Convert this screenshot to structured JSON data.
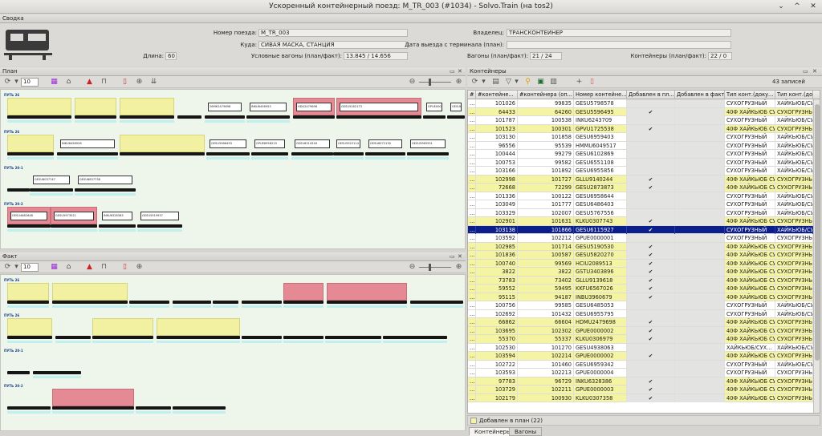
{
  "window": {
    "title": "Ускоренный контейнерный поезд: M_TR_003 (#1034) - Solvo.Train (на tos2)",
    "controls": [
      "⌄",
      "^",
      "✕"
    ]
  },
  "summary": {
    "header": "Сводка",
    "train_number_label": "Номер поезда:",
    "train_number": "M_TR_003",
    "destination_label": "Куда:",
    "destination": "СИВАЯ МАСКА, СТАНЦИЯ",
    "length_label": "Длина:",
    "length": "60",
    "cond_wagons_label": "Условные вагоны (план/факт):",
    "cond_wagons": "13.845 / 14.656",
    "owner_label": "Владелец:",
    "owner": "ТРАНСКОНТЕЙНЕР",
    "departure_label": "Дата выезда с терминала (план):",
    "departure": "",
    "wagons_label": "Вагоны (план/факт):",
    "wagons": "21 / 24",
    "containers_label": "Контейнеры (план/факт):",
    "containers": "22 / 0"
  },
  "plan": {
    "header": "План",
    "spin_value": "10",
    "tracks": [
      {
        "label": "ПУТЬ 26",
        "boxes": [
          "26МК2479698",
          "INKU6456953",
          "HDU2479698",
          "GESU5282173",
          "GPUE0000001",
          "GESU6952181"
        ]
      },
      {
        "label": "ПУТЬ 26",
        "boxes": [
          "INKU6456926",
          "GESU5986493",
          "GPUE6958219",
          "GESU6314318",
          "GESU5922114",
          "GESU6572130",
          "GESU5965551"
        ]
      },
      {
        "label": "ПУТЬ 20-1",
        "boxes": [
          "GESU6037747",
          "GESU6837738"
        ]
      },
      {
        "label": "ПУТЬ 20-2",
        "boxes": [
          "GESU4682648",
          "GESU5973521",
          "INKU6328383",
          "GESU5919937"
        ]
      }
    ]
  },
  "fact": {
    "header": "Факт",
    "spin_value": "10",
    "tracks": [
      {
        "label": "ПУТЬ 26"
      },
      {
        "label": "ПУТЬ 26"
      },
      {
        "label": "ПУТЬ 20-1"
      },
      {
        "label": "ПУТЬ 20-2"
      }
    ]
  },
  "containers": {
    "header": "Контейнеры",
    "record_count": "43 записей",
    "columns": [
      "#",
      "#контейне...",
      "#контейнера (оп...",
      "Номер контейне...",
      "Добавлен в пл...",
      "Добавлен в факт",
      "Тип конт.(доку...",
      "Тип конт.(доку..."
    ],
    "rows": [
      {
        "style": "W",
        "n1": "101026",
        "n2": "99835",
        "num": "GESU5798578",
        "plan": "",
        "type1": "СУХОГРУЗНЫЙ",
        "type2": "ХАЙКЬЮБ/СУ..."
      },
      {
        "style": "Y",
        "n1": "64433",
        "n2": "64260",
        "num": "GESU5596495",
        "plan": "✔",
        "type1": "40Ф ХАЙКЬЮБ СУ...",
        "type2": "СУХОГРУЗНЫ"
      },
      {
        "style": "W",
        "n1": "101787",
        "n2": "100538",
        "num": "INKU6243709",
        "plan": "",
        "type1": "СУХОГРУЗНЫЙ",
        "type2": "ХАЙКЬЮБ/СУ..."
      },
      {
        "style": "Y",
        "n1": "101523",
        "n2": "100301",
        "num": "GPVU1725538",
        "plan": "✔",
        "type1": "40Ф ХАЙКЬЮБ СУ...",
        "type2": "СУХОГРУЗНЫ"
      },
      {
        "style": "W",
        "n1": "103130",
        "n2": "101858",
        "num": "GESU6959403",
        "plan": "",
        "type1": "СУХОГРУЗНЫЙ",
        "type2": "ХАЙКЬЮБ/СУ..."
      },
      {
        "style": "W",
        "n1": "96556",
        "n2": "95539",
        "num": "HMMU6049517",
        "plan": "",
        "type1": "СУХОГРУЗНЫЙ",
        "type2": "ХАЙКЬЮБ/СУ..."
      },
      {
        "style": "W",
        "n1": "100444",
        "n2": "99279",
        "num": "GESU6102869",
        "plan": "",
        "type1": "СУХОГРУЗНЫЙ",
        "type2": "ХАЙКЬЮБ/СУ..."
      },
      {
        "style": "W",
        "n1": "100753",
        "n2": "99582",
        "num": "GESU6551108",
        "plan": "",
        "type1": "СУХОГРУЗНЫЙ",
        "type2": "ХАЙКЬЮБ/СУ..."
      },
      {
        "style": "W",
        "n1": "103166",
        "n2": "101892",
        "num": "GESU6955856",
        "plan": "",
        "type1": "СУХОГРУЗНЫЙ",
        "type2": "ХАЙКЬЮБ/СУ..."
      },
      {
        "style": "Y",
        "n1": "102998",
        "n2": "101727",
        "num": "GLLU9140244",
        "plan": "✔",
        "type1": "40Ф ХАЙКЬЮБ СУ...",
        "type2": "СУХОГРУЗНЫ"
      },
      {
        "style": "Y",
        "n1": "72668",
        "n2": "72299",
        "num": "GESU2873873",
        "plan": "✔",
        "type1": "40Ф ХАЙКЬЮБ СУ...",
        "type2": "СУХОГРУЗНЫ"
      },
      {
        "style": "W",
        "n1": "101336",
        "n2": "100122",
        "num": "GESU6958644",
        "plan": "",
        "type1": "СУХОГРУЗНЫЙ",
        "type2": "ХАЙКЬЮБ/СУ..."
      },
      {
        "style": "W",
        "n1": "103049",
        "n2": "101777",
        "num": "GESU6486403",
        "plan": "",
        "type1": "СУХОГРУЗНЫЙ",
        "type2": "ХАЙКЬЮБ/СУ..."
      },
      {
        "style": "W",
        "n1": "103329",
        "n2": "102007",
        "num": "GESU5767556",
        "plan": "",
        "type1": "СУХОГРУЗНЫЙ",
        "type2": "ХАЙКЬЮБ/СУ..."
      },
      {
        "style": "Y",
        "n1": "102901",
        "n2": "101631",
        "num": "KLKU0307743",
        "plan": "✔",
        "type1": "40Ф ХАЙКЬЮБ СУ...",
        "type2": "СУХОГРУЗНЫ"
      },
      {
        "style": "S",
        "n1": "103138",
        "n2": "101866",
        "num": "GESU6115927",
        "plan": "✔",
        "type1": "СУХОГРУЗНЫЙ",
        "type2": "ХАЙКЬЮБ/СУ..."
      },
      {
        "style": "W",
        "n1": "103592",
        "n2": "102212",
        "num": "GPUE0000001",
        "plan": "",
        "type1": "СУХОГРУЗНЫЙ",
        "type2": "СУХОГРУЗНЫ"
      },
      {
        "style": "Y",
        "n1": "102985",
        "n2": "101714",
        "num": "GESU5190530",
        "plan": "✔",
        "type1": "40Ф ХАЙКЬЮБ СУ...",
        "type2": "СУХОГРУЗНЫ"
      },
      {
        "style": "Y",
        "n1": "101836",
        "n2": "100587",
        "num": "GESU5820270",
        "plan": "✔",
        "type1": "40Ф ХАЙКЬЮБ СУ...",
        "type2": "СУХОГРУЗНЫ"
      },
      {
        "style": "Y",
        "n1": "100740",
        "n2": "99569",
        "num": "HCIU2089513",
        "plan": "✔",
        "type1": "40Ф ХАЙКЬЮБ СУ...",
        "type2": "СУХОГРУЗНЫ"
      },
      {
        "style": "Y",
        "n1": "3822",
        "n2": "3822",
        "num": "GSTU3403896",
        "plan": "✔",
        "type1": "40Ф ХАЙКЬЮБ СУ...",
        "type2": "СУХОГРУЗНЫ"
      },
      {
        "style": "Y",
        "n1": "73783",
        "n2": "73402",
        "num": "GLLU9139618",
        "plan": "✔",
        "type1": "40Ф ХАЙКЬЮБ СУ...",
        "type2": "СУХОГРУЗНЫ"
      },
      {
        "style": "Y",
        "n1": "59552",
        "n2": "59495",
        "num": "KKFU6567026",
        "plan": "✔",
        "type1": "40Ф ХАЙКЬЮБ СУ...",
        "type2": "СУХОГРУЗНЫ"
      },
      {
        "style": "Y",
        "n1": "95115",
        "n2": "94187",
        "num": "INBU3960679",
        "plan": "✔",
        "type1": "40Ф ХАЙКЬЮБ СУ...",
        "type2": "СУХОГРУЗНЫ"
      },
      {
        "style": "W",
        "n1": "100756",
        "n2": "99585",
        "num": "GESU6485053",
        "plan": "",
        "type1": "СУХОГРУЗНЫЙ",
        "type2": "ХАЙКЬЮБ/СУ..."
      },
      {
        "style": "W",
        "n1": "102692",
        "n2": "101432",
        "num": "GESU6955795",
        "plan": "",
        "type1": "СУХОГРУЗНЫЙ",
        "type2": "ХАЙКЬЮБ/СУ..."
      },
      {
        "style": "Y",
        "n1": "66862",
        "n2": "66604",
        "num": "HDMU2479698",
        "plan": "✔",
        "type1": "40Ф ХАЙКЬЮБ СУ...",
        "type2": "СУХОГРУЗНЫ"
      },
      {
        "style": "Y",
        "n1": "103695",
        "n2": "102302",
        "num": "GPUE0000002",
        "plan": "✔",
        "type1": "40Ф ХАЙКЬЮБ СУ...",
        "type2": "СУХОГРУЗНЫ"
      },
      {
        "style": "Y",
        "n1": "55370",
        "n2": "55337",
        "num": "KLKU0306979",
        "plan": "✔",
        "type1": "40Ф ХАЙКЬЮБ СУ...",
        "type2": "СУХОГРУЗНЫ"
      },
      {
        "style": "W",
        "n1": "102530",
        "n2": "101270",
        "num": "GESU4938063",
        "plan": "",
        "type1": "ХАЙКЬЮБ/СУХ...",
        "type2": "ХАЙКЬЮБ/СУ..."
      },
      {
        "style": "Y",
        "n1": "103594",
        "n2": "102214",
        "num": "GPUE0000002",
        "plan": "✔",
        "type1": "40Ф ХАЙКЬЮБ СУ...",
        "type2": "СУХОГРУЗНЫ"
      },
      {
        "style": "W",
        "n1": "102722",
        "n2": "101460",
        "num": "GESU6959342",
        "plan": "",
        "type1": "СУХОГРУЗНЫЙ",
        "type2": "ХАЙКЬЮБ/СУ..."
      },
      {
        "style": "W",
        "n1": "103593",
        "n2": "102213",
        "num": "GPUE0000004",
        "plan": "",
        "type1": "СУХОГРУЗНЫЙ",
        "type2": "СУХОГРУЗНЫ"
      },
      {
        "style": "Y",
        "n1": "97783",
        "n2": "96729",
        "num": "INKU6328386",
        "plan": "✔",
        "type1": "40Ф ХАЙКЬЮБ СУ...",
        "type2": "СУХОГРУЗНЫ"
      },
      {
        "style": "Y",
        "n1": "103729",
        "n2": "102211",
        "num": "GPUE0000003",
        "plan": "✔",
        "type1": "40Ф ХАЙКЬЮБ СУ...",
        "type2": "СУХОГРУЗНЫ"
      },
      {
        "style": "Y",
        "n1": "102179",
        "n2": "100930",
        "num": "KLKU0307358",
        "plan": "✔",
        "type1": "40Ф ХАЙКЬЮБ СУ...",
        "type2": "СУХОГРУЗНЫ"
      }
    ],
    "legend": "Добавлен в план (22)"
  },
  "tabs": [
    "Контейнеры",
    "Вагоны"
  ]
}
